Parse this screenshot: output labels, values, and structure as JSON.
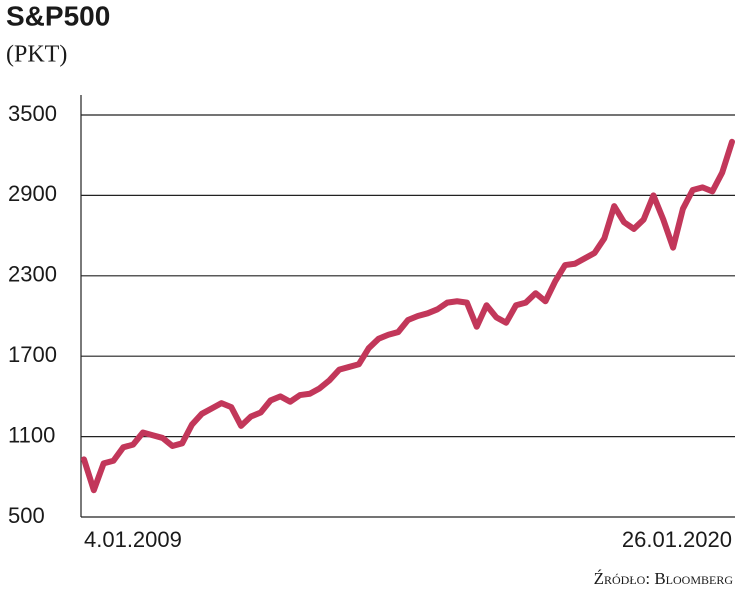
{
  "chart_data": {
    "type": "line",
    "title": "S&P500",
    "subtitle": "(PKT)",
    "source": "Źródło: Bloomberg",
    "categories": [
      "4.01.2009",
      null,
      null,
      null,
      null,
      null,
      null,
      null,
      null,
      null,
      null,
      null,
      null,
      null,
      null,
      null,
      null,
      null,
      null,
      null,
      null,
      null,
      null,
      null,
      null,
      null,
      null,
      null,
      null,
      null,
      null,
      null,
      null,
      null,
      null,
      null,
      null,
      null,
      null,
      null,
      null,
      null,
      null,
      null,
      null,
      null,
      null,
      null,
      null,
      null,
      null,
      null,
      null,
      null,
      null,
      null,
      null,
      null,
      null,
      null,
      null,
      null,
      null,
      null,
      null,
      null,
      "26.01.2020"
    ],
    "series": [
      {
        "name": "S&P500",
        "color": "#c2375a",
        "values": [
          930,
          700,
          900,
          920,
          1020,
          1040,
          1130,
          1110,
          1090,
          1030,
          1050,
          1190,
          1270,
          1310,
          1350,
          1320,
          1180,
          1250,
          1280,
          1370,
          1400,
          1360,
          1410,
          1420,
          1460,
          1520,
          1600,
          1620,
          1640,
          1760,
          1830,
          1860,
          1880,
          1970,
          2000,
          2020,
          2050,
          2100,
          2110,
          2100,
          1920,
          2080,
          1990,
          1950,
          2080,
          2100,
          2170,
          2110,
          2260,
          2380,
          2390,
          2430,
          2470,
          2580,
          2820,
          2700,
          2650,
          2720,
          2900,
          2720,
          2510,
          2800,
          2940,
          2960,
          2930,
          3070,
          3300
        ]
      }
    ],
    "ylim": [
      500,
      3500
    ],
    "yticks": [
      500,
      1100,
      1700,
      2300,
      2900,
      3500
    ],
    "grid": true
  }
}
